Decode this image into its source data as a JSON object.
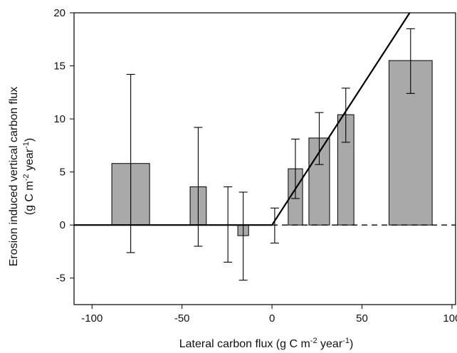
{
  "chart_data": {
    "type": "bar",
    "title": "",
    "xlabel": {
      "text": "Lateral carbon flux (g C m",
      "sup1": "-2",
      "mid": " year",
      "sup2": "-1",
      "end": ")"
    },
    "ylabel": {
      "line1": "Erosion induced vertical carbon flux",
      "line2_start": "(g C m",
      "line2_sup1": "-2",
      "line2_mid": " year",
      "line2_sup2": "-1",
      "line2_end": ")"
    },
    "xlim": [
      -110,
      102
    ],
    "ylim": [
      -7.5,
      20
    ],
    "xticks": [
      -100,
      -50,
      0,
      50,
      100
    ],
    "yticks": [
      -5,
      0,
      5,
      10,
      15,
      20
    ],
    "xtick_labels": [
      "-100",
      "-50",
      "0",
      "50",
      "100"
    ],
    "ytick_labels": [
      "-5",
      "0",
      "5",
      "10",
      "15",
      "20"
    ],
    "grid": false,
    "legend": "none",
    "bar_color": "#a9a9a9",
    "bars": [
      {
        "x_left": -89,
        "x_right": -68,
        "value": 5.8,
        "err_low": -2.6,
        "err_high": 14.2
      },
      {
        "x_left": -45.5,
        "x_right": -36.5,
        "value": 3.6,
        "err_low": -2.0,
        "err_high": 9.2
      },
      {
        "x_left": -19,
        "x_right": -13,
        "value": -1.0,
        "err_low": -5.2,
        "err_high": 3.1
      },
      {
        "x_left": 9,
        "x_right": 17,
        "value": 5.3,
        "err_low": 2.5,
        "err_high": 8.1
      },
      {
        "x_left": 20.5,
        "x_right": 32,
        "value": 8.2,
        "err_low": 5.7,
        "err_high": 10.6
      },
      {
        "x_left": 36.5,
        "x_right": 45.5,
        "value": 10.4,
        "err_low": 7.8,
        "err_high": 12.9
      },
      {
        "x_left": 65,
        "x_right": 89,
        "value": 15.5,
        "err_low": 12.4,
        "err_high": 18.5
      }
    ],
    "error_only": [
      {
        "x": -24.5,
        "err_low": -3.5,
        "err_high": 3.6
      },
      {
        "x": 1.5,
        "err_low": -1.7,
        "err_high": 1.6
      }
    ],
    "fit_line": {
      "x": [
        -110,
        0,
        76.5
      ],
      "y": [
        0,
        0,
        20
      ]
    },
    "dashed_line": {
      "x": [
        0,
        102
      ],
      "y": [
        0,
        0
      ]
    }
  }
}
